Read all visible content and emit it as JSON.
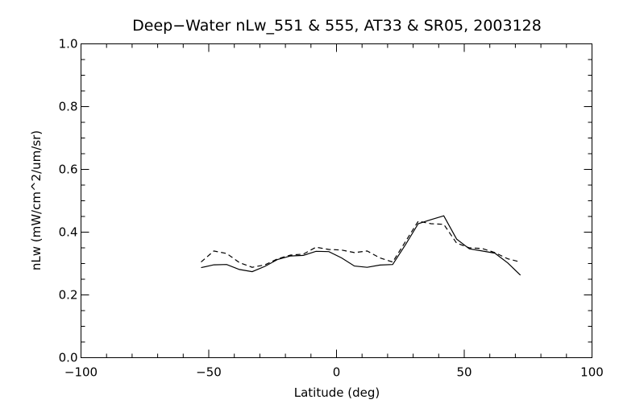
{
  "chart_data": {
    "type": "line",
    "title": "Deep−Water nLw_551 & 555, AT33 & SR05, 2003128",
    "xlabel": "Latitude (deg)",
    "ylabel": "nLw (mW/cm^2/um/sr)",
    "xlim": [
      -100,
      100
    ],
    "ylim": [
      0.0,
      1.0
    ],
    "xticks": [
      -100,
      -50,
      0,
      50,
      100
    ],
    "xtick_labels": [
      "−100",
      "−50",
      "0",
      "50",
      "100"
    ],
    "yticks": [
      0.0,
      0.2,
      0.4,
      0.6,
      0.8,
      1.0
    ],
    "ytick_labels": [
      "0.0",
      "0.2",
      "0.4",
      "0.6",
      "0.8",
      "1.0"
    ],
    "x_minor_step": 10,
    "y_minor_step": 0.05,
    "grid": false,
    "series": [
      {
        "style": "solid",
        "x": [
          -53,
          -48,
          -43,
          -38,
          -33,
          -28,
          -23,
          -18,
          -13,
          -8,
          -3,
          2,
          7,
          12,
          17,
          22,
          27,
          32,
          37,
          42,
          47,
          52,
          57,
          62,
          67,
          72
        ],
        "y": [
          0.287,
          0.296,
          0.297,
          0.281,
          0.274,
          0.291,
          0.313,
          0.324,
          0.326,
          0.339,
          0.338,
          0.318,
          0.292,
          0.288,
          0.295,
          0.297,
          0.36,
          0.427,
          0.44,
          0.452,
          0.378,
          0.347,
          0.34,
          0.333,
          0.302,
          0.263
        ]
      },
      {
        "style": "dashed",
        "x": [
          -53,
          -48,
          -43,
          -38,
          -33,
          -28,
          -23,
          -18,
          -13,
          -8,
          -3,
          2,
          7,
          12,
          17,
          22,
          27,
          32,
          37,
          42,
          47,
          52,
          57,
          62,
          67,
          72
        ],
        "y": [
          0.305,
          0.34,
          0.332,
          0.303,
          0.288,
          0.296,
          0.315,
          0.327,
          0.33,
          0.352,
          0.345,
          0.343,
          0.335,
          0.34,
          0.318,
          0.305,
          0.37,
          0.435,
          0.427,
          0.425,
          0.365,
          0.35,
          0.348,
          0.335,
          0.315,
          0.305
        ]
      }
    ]
  }
}
